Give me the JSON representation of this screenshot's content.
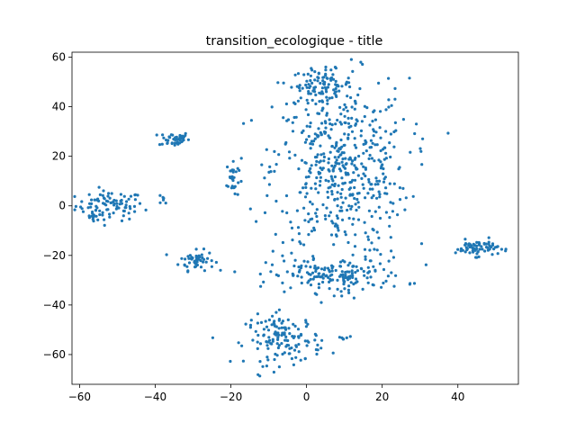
{
  "chart_data": {
    "type": "scatter",
    "title": "transition_ecologique - title",
    "xlabel": "",
    "ylabel": "",
    "xlim": [
      -62,
      56
    ],
    "ylim": [
      -72,
      62
    ],
    "xticks": [
      -60,
      -40,
      -20,
      0,
      20,
      40
    ],
    "yticks": [
      -60,
      -40,
      -20,
      0,
      20,
      40,
      60
    ],
    "grid": false,
    "marker_color": "#1f77b4",
    "clusters": [
      {
        "cx": -52,
        "cy": 0,
        "sx": 4.5,
        "sy": 3,
        "n": 90
      },
      {
        "cx": -56,
        "cy": -5,
        "sx": 0.8,
        "sy": 1,
        "n": 8
      },
      {
        "cx": -38,
        "cy": 2,
        "sx": 0.6,
        "sy": 1,
        "n": 6
      },
      {
        "cx": -35,
        "cy": 27,
        "sx": 2,
        "sy": 1.5,
        "n": 45
      },
      {
        "cx": -29,
        "cy": -22,
        "sx": 2.3,
        "sy": 2,
        "n": 55
      },
      {
        "cx": -19.5,
        "cy": 11,
        "sx": 0.8,
        "sy": 4,
        "n": 30
      },
      {
        "cx": 4,
        "cy": 49,
        "sx": 4,
        "sy": 3,
        "n": 90
      },
      {
        "cx": 9,
        "cy": 15,
        "sx": 9,
        "sy": 18,
        "n": 520
      },
      {
        "cx": 8,
        "cy": -28,
        "sx": 9,
        "sy": 3.5,
        "n": 170
      },
      {
        "cx": -6,
        "cy": -54,
        "sx": 5,
        "sy": 5,
        "n": 140
      },
      {
        "cx": 10,
        "cy": -53.5,
        "sx": 1,
        "sy": 0.6,
        "n": 6
      },
      {
        "cx": 45,
        "cy": -17,
        "sx": 2.8,
        "sy": 1.6,
        "n": 70
      }
    ]
  }
}
